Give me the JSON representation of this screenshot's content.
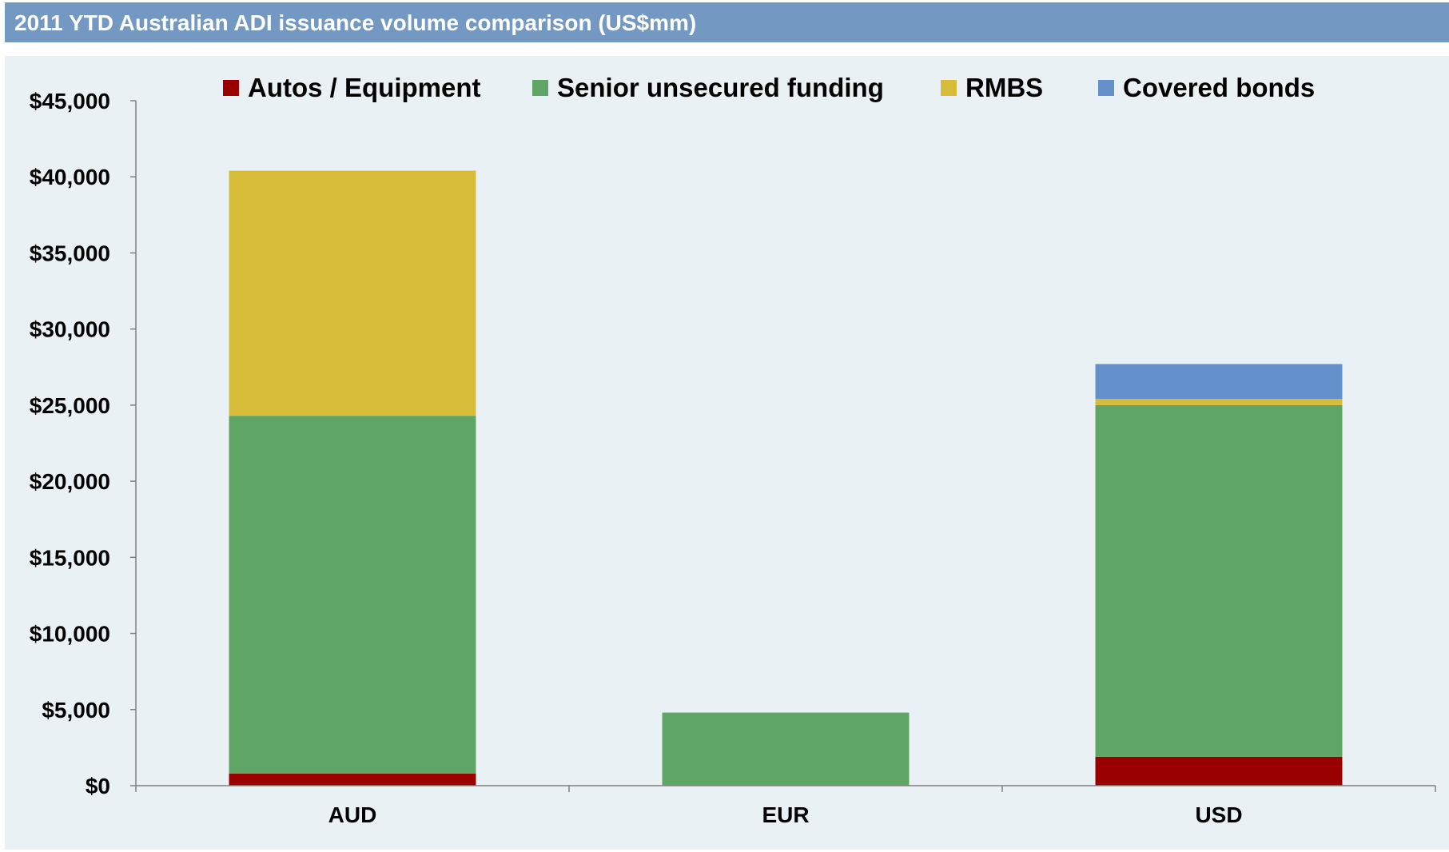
{
  "header": {
    "title": "2011 YTD Australian ADI issuance volume comparison (US$mm)"
  },
  "chart_data": {
    "type": "bar",
    "stacked": true,
    "title": "2011 YTD Australian ADI issuance volume comparison (US$mm)",
    "xlabel": "",
    "ylabel": "",
    "categories": [
      "AUD",
      "EUR",
      "USD"
    ],
    "series": [
      {
        "name": "Autos / Equipment",
        "color": "#9b0000",
        "values": [
          800,
          0,
          1900
        ]
      },
      {
        "name": "Senior unsecured funding",
        "color": "#5fa565",
        "values": [
          23500,
          4800,
          23100
        ]
      },
      {
        "name": "RMBS",
        "color": "#d6bc38",
        "values": [
          16100,
          0,
          400
        ]
      },
      {
        "name": "Covered bonds",
        "color": "#6491cc",
        "values": [
          0,
          0,
          2300
        ]
      }
    ],
    "ylim": [
      0,
      45000
    ],
    "yticks": [
      0,
      5000,
      10000,
      15000,
      20000,
      25000,
      30000,
      35000,
      40000,
      45000
    ],
    "ytick_labels": [
      "$0",
      "$5,000",
      "$10,000",
      "$15,000",
      "$20,000",
      "$25,000",
      "$30,000",
      "$35,000",
      "$40,000",
      "$45,000"
    ],
    "grid": false,
    "legend_position": "top"
  }
}
